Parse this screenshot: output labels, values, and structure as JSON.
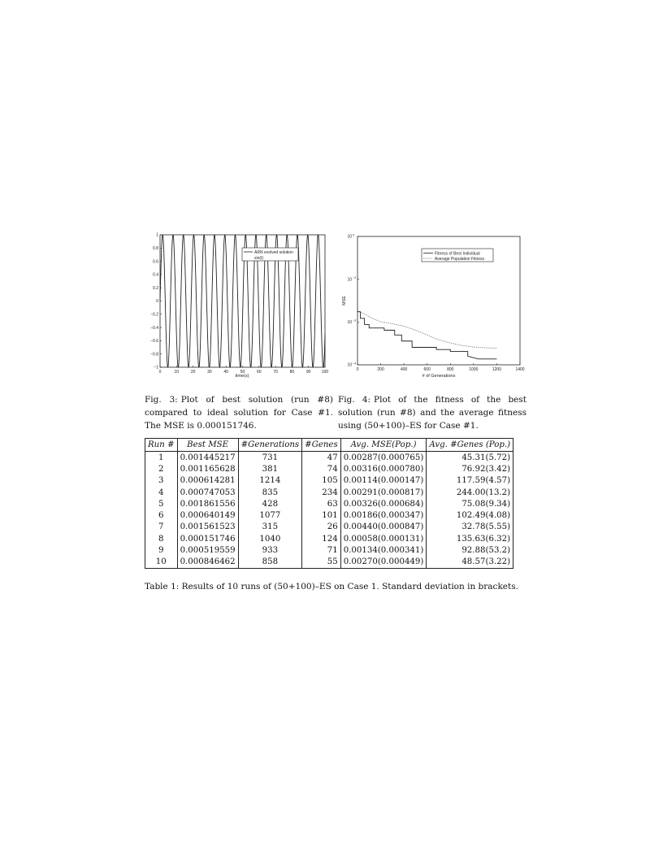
{
  "chart_data": [
    {
      "type": "line",
      "title": "",
      "xlabel": "time(s)",
      "ylabel": "",
      "xlim": [
        0,
        100
      ],
      "ylim": [
        -1,
        1
      ],
      "x_ticks": [
        "0",
        "10",
        "20",
        "30",
        "40",
        "50",
        "60",
        "70",
        "80",
        "90",
        "100"
      ],
      "y_ticks": [
        "−1",
        "−0.8",
        "−0.6",
        "−0.4",
        "−0.2",
        "0",
        "0.2",
        "0.4",
        "0.6",
        "0.8",
        "1"
      ],
      "legend_position": "top-right",
      "series": [
        {
          "name": "ARN evolved solution",
          "function": "sin(t)",
          "x_range": [
            0,
            100
          ]
        },
        {
          "name": "sin(t)",
          "function": "sin(t)",
          "x_range": [
            0,
            100
          ]
        }
      ]
    },
    {
      "type": "line",
      "title": "",
      "xlabel": "# of Generations",
      "ylabel": "MSE",
      "xlim": [
        0,
        1400
      ],
      "ylim": [
        0.0001,
        1
      ],
      "log_y": true,
      "x_ticks": [
        "0",
        "200",
        "400",
        "600",
        "800",
        "1000",
        "1200",
        "1400"
      ],
      "legend_position": "top-right",
      "series": [
        {
          "name": "Fitness of Best Individual",
          "x": [
            0,
            25,
            25,
            60,
            60,
            100,
            100,
            230,
            230,
            320,
            320,
            380,
            380,
            470,
            470,
            680,
            680,
            800,
            800,
            950,
            950,
            1040,
            1200
          ],
          "y": [
            0.0045,
            0.0045,
            0.0028,
            0.0028,
            0.0018,
            0.0018,
            0.0014,
            0.0014,
            0.0012,
            0.0012,
            0.00085,
            0.00085,
            0.00055,
            0.00055,
            0.00035,
            0.00035,
            0.0003,
            0.0003,
            0.00026,
            0.00026,
            0.000185,
            0.000152,
            0.000152
          ]
        },
        {
          "name": "Average Population Fitness",
          "x": [
            0,
            50,
            100,
            150,
            200,
            300,
            400,
            500,
            600,
            700,
            800,
            900,
            1000,
            1100,
            1200
          ],
          "y": [
            0.0048,
            0.004,
            0.0032,
            0.0026,
            0.0022,
            0.0019,
            0.0016,
            0.0012,
            0.00085,
            0.0006,
            0.00048,
            0.0004,
            0.00036,
            0.00034,
            0.00033
          ]
        }
      ]
    }
  ],
  "fig3": {
    "x_ticks": [
      "0",
      "10",
      "20",
      "30",
      "40",
      "50",
      "60",
      "70",
      "80",
      "90",
      "100"
    ],
    "y_ticks": [
      "1",
      "0.8",
      "0.6",
      "0.4",
      "0.2",
      "0",
      "−0.2",
      "−0.4",
      "−0.6",
      "−0.8",
      "−1"
    ],
    "xlabel": "time(s)",
    "legend": [
      "ARN evolved solution",
      "sin(t)"
    ],
    "caption_label": "Fig. 3:",
    "caption_text": "Plot of best solution (run #8) compared to ideal solution for Case #1. The MSE is 0.000151746."
  },
  "fig4": {
    "x_ticks": [
      "0",
      "200",
      "400",
      "600",
      "800",
      "1000",
      "1200",
      "1400"
    ],
    "y_ticks": [
      "10",
      "10",
      "10",
      "10"
    ],
    "y_exps": [
      "1",
      "2",
      "3",
      "4"
    ],
    "ylabel": "MSE",
    "xlabel": "# of Generations",
    "legend": [
      "Fitness of Best Individual",
      "Average Population Fitness"
    ],
    "caption_label": "Fig. 4:",
    "caption_text": "Plot of the fitness of the best solution (run #8) and the average fitness using (50+100)–ES for Case #1."
  },
  "table": {
    "headers": [
      "Run #",
      "Best MSE",
      "#Generations",
      "#Genes",
      "Avg. MSE(Pop.)",
      "Avg. #Genes (Pop.)"
    ],
    "rows": [
      [
        "1",
        "0.001445217",
        "731",
        "47",
        "0.00287(0.000765)",
        "45.31(5.72)"
      ],
      [
        "2",
        "0.001165628",
        "381",
        "74",
        "0.00316(0.000780)",
        "76.92(3.42)"
      ],
      [
        "3",
        "0.000614281",
        "1214",
        "105",
        "0.00114(0.000147)",
        "117.59(4.57)"
      ],
      [
        "4",
        "0.000747053",
        "835",
        "234",
        "0.00291(0.000817)",
        "244.00(13.2)"
      ],
      [
        "5",
        "0.001861556",
        "428",
        "63",
        "0.00326(0.000684)",
        "75.08(9.34)"
      ],
      [
        "6",
        "0.000640149",
        "1077",
        "101",
        "0.00186(0.000347)",
        "102.49(4.08)"
      ],
      [
        "7",
        "0.001561523",
        "315",
        "26",
        "0.00440(0.000847)",
        "32.78(5.55)"
      ],
      [
        "8",
        "0.000151746",
        "1040",
        "124",
        "0.00058(0.000131)",
        "135.63(6.32)"
      ],
      [
        "9",
        "0.000519559",
        "933",
        "71",
        "0.00134(0.000341)",
        "92.88(53.2)"
      ],
      [
        "10",
        "0.000846462",
        "858",
        "55",
        "0.00270(0.000449)",
        "48.57(3.22)"
      ]
    ],
    "caption": "Table 1: Results of 10 runs of (50+100)–ES on Case 1. Standard deviation in brackets."
  }
}
